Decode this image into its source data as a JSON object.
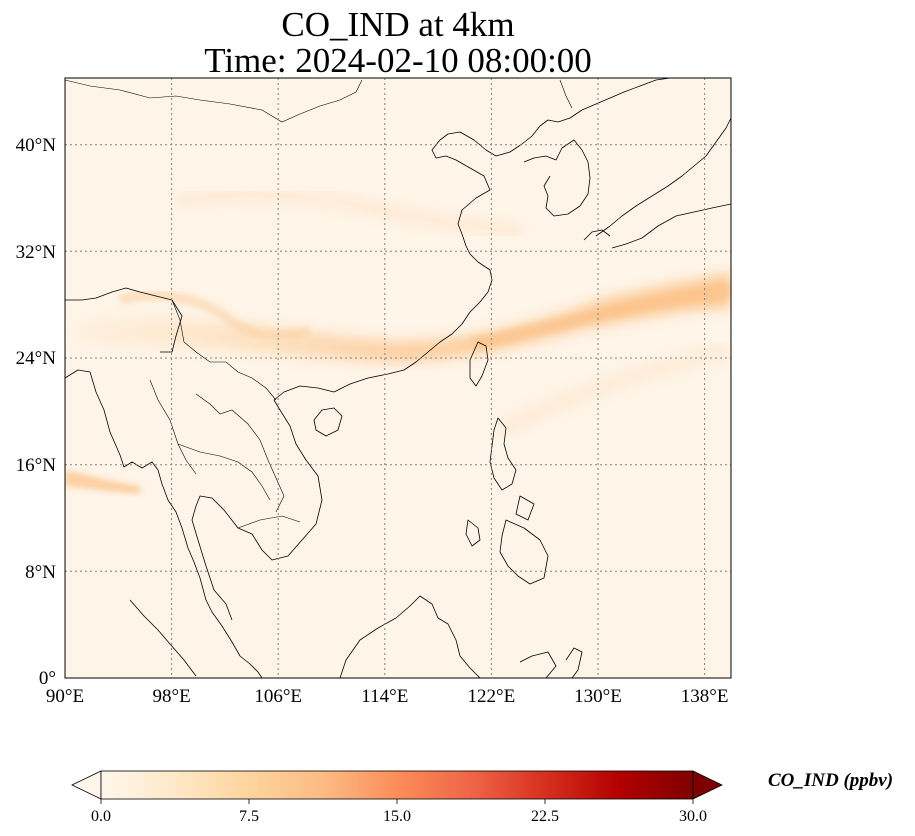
{
  "title": {
    "line1": "CO_IND at 4km",
    "line2": "Time: 2024-02-10 08:00:00"
  },
  "map": {
    "projection": "PlateCarree",
    "lon_range": [
      90,
      140
    ],
    "lat_range": [
      0,
      45
    ],
    "gridlines": true,
    "x_ticks": [
      "90°E",
      "98°E",
      "106°E",
      "114°E",
      "122°E",
      "130°E",
      "138°E"
    ],
    "y_ticks": [
      "0°",
      "8°N",
      "16°N",
      "24°N",
      "32°N",
      "40°N"
    ],
    "coastlines": true,
    "borders": true
  },
  "colorbar": {
    "label": "CO_IND (ppbv)",
    "colormap": "OrRd",
    "range": [
      0,
      30
    ],
    "extend": "both",
    "ticks": [
      "0.0",
      "7.5",
      "15.0",
      "22.5",
      "30.0"
    ]
  }
}
